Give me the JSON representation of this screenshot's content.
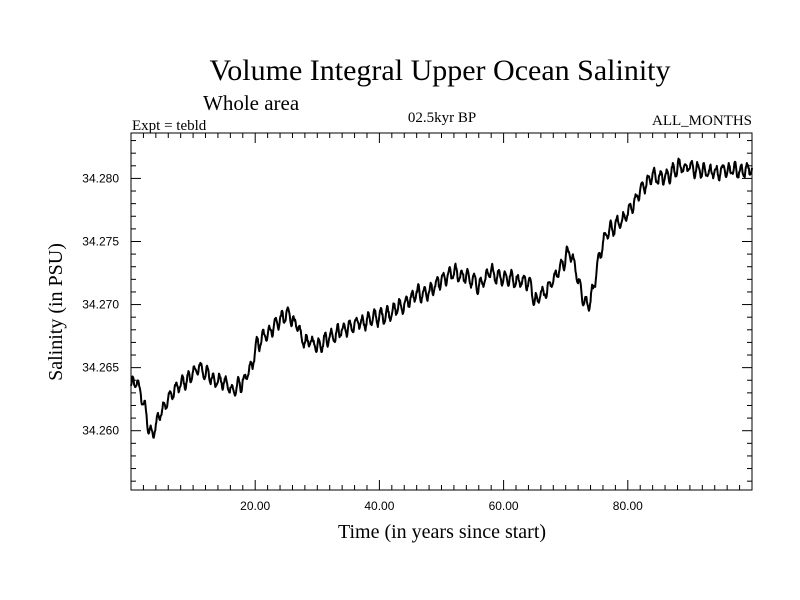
{
  "chart_data": {
    "type": "line",
    "title": "Volume Integral Upper Ocean Salinity",
    "subtitle": "Whole area",
    "expt_label": "Expt = tebld",
    "period_label": "02.5kyr BP",
    "months_label": "ALL_MONTHS",
    "xlabel": "Time (in years since start)",
    "ylabel": "Salinity (in PSU)",
    "xlim": [
      0,
      100
    ],
    "ylim": [
      34.2553,
      34.2836
    ],
    "x_ticks": [
      20,
      40,
      60,
      80
    ],
    "x_tick_labels": [
      "20.00",
      "40.00",
      "60.00",
      "80.00"
    ],
    "y_ticks": [
      34.26,
      34.265,
      34.27,
      34.275,
      34.28
    ],
    "y_tick_labels": [
      "34.260",
      "34.265",
      "34.270",
      "34.275",
      "34.280"
    ],
    "grid": false,
    "series": [
      {
        "name": "Salinity",
        "color": "#000000",
        "trend_x": [
          0,
          1,
          2,
          3,
          3.5,
          4,
          5,
          7,
          9,
          11,
          13,
          15,
          16.5,
          18,
          19.5,
          20,
          22,
          24,
          25.5,
          26.5,
          27.5,
          29,
          30,
          32,
          34,
          36,
          38,
          40,
          42,
          44,
          46,
          48,
          50,
          52,
          54,
          56,
          58,
          60,
          62,
          64,
          65,
          67,
          69,
          70.5,
          71.5,
          72.5,
          73.5,
          74,
          75,
          76,
          77,
          78,
          80,
          82,
          84,
          86,
          88,
          90,
          92,
          94,
          96,
          98,
          100
        ],
        "trend_y": [
          34.2635,
          34.2638,
          34.2622,
          34.26,
          34.2595,
          34.2605,
          34.2618,
          34.2632,
          34.264,
          34.265,
          34.2642,
          34.2638,
          34.2632,
          34.2638,
          34.265,
          34.2665,
          34.2678,
          34.2688,
          34.2692,
          34.2685,
          34.2672,
          34.267,
          34.2668,
          34.2675,
          34.268,
          34.2683,
          34.2688,
          34.269,
          34.2695,
          34.27,
          34.2708,
          34.271,
          34.2718,
          34.2725,
          34.2722,
          34.2715,
          34.2725,
          34.2722,
          34.272,
          34.2718,
          34.2705,
          34.2712,
          34.2728,
          34.2742,
          34.273,
          34.271,
          34.27,
          34.2705,
          34.2725,
          34.275,
          34.2758,
          34.2762,
          34.2772,
          34.279,
          34.2802,
          34.28,
          34.281,
          34.2808,
          34.2806,
          34.2804,
          34.2808,
          34.2806,
          34.2808
        ],
        "variability_psu": 0.0009,
        "min_value": 34.2584,
        "max_value": 34.2828
      }
    ]
  }
}
